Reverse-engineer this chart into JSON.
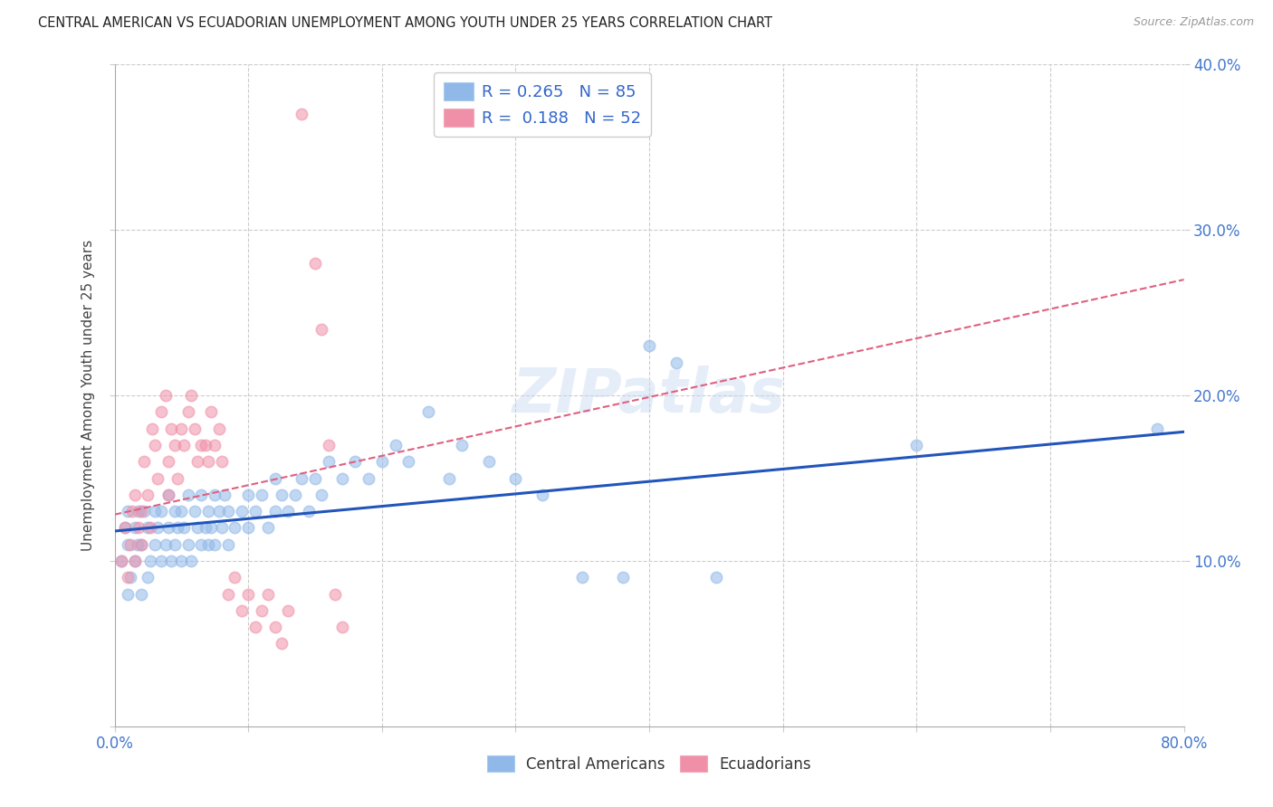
{
  "title": "CENTRAL AMERICAN VS ECUADORIAN UNEMPLOYMENT AMONG YOUTH UNDER 25 YEARS CORRELATION CHART",
  "source": "Source: ZipAtlas.com",
  "ylabel": "Unemployment Among Youth under 25 years",
  "xlim": [
    0,
    0.8
  ],
  "ylim": [
    0,
    0.4
  ],
  "blue_color": "#90b8e8",
  "pink_color": "#f090a8",
  "blue_line_color": "#2255bb",
  "pink_line_color": "#e06080",
  "watermark": "ZIPatlas",
  "blue_line_start_y": 0.118,
  "blue_line_end_y": 0.178,
  "pink_line_start_y": 0.128,
  "pink_line_end_y": 0.27,
  "blue_scatter_x": [
    0.005,
    0.008,
    0.01,
    0.01,
    0.01,
    0.012,
    0.015,
    0.015,
    0.017,
    0.018,
    0.02,
    0.02,
    0.022,
    0.025,
    0.025,
    0.027,
    0.03,
    0.03,
    0.032,
    0.035,
    0.035,
    0.038,
    0.04,
    0.04,
    0.042,
    0.045,
    0.045,
    0.047,
    0.05,
    0.05,
    0.052,
    0.055,
    0.055,
    0.057,
    0.06,
    0.062,
    0.065,
    0.065,
    0.068,
    0.07,
    0.07,
    0.072,
    0.075,
    0.075,
    0.078,
    0.08,
    0.082,
    0.085,
    0.085,
    0.09,
    0.095,
    0.1,
    0.1,
    0.105,
    0.11,
    0.115,
    0.12,
    0.12,
    0.125,
    0.13,
    0.135,
    0.14,
    0.145,
    0.15,
    0.155,
    0.16,
    0.17,
    0.18,
    0.19,
    0.2,
    0.21,
    0.22,
    0.235,
    0.25,
    0.26,
    0.28,
    0.3,
    0.32,
    0.35,
    0.38,
    0.4,
    0.42,
    0.45,
    0.6,
    0.78
  ],
  "blue_scatter_y": [
    0.1,
    0.12,
    0.08,
    0.11,
    0.13,
    0.09,
    0.1,
    0.12,
    0.11,
    0.13,
    0.08,
    0.11,
    0.13,
    0.09,
    0.12,
    0.1,
    0.11,
    0.13,
    0.12,
    0.1,
    0.13,
    0.11,
    0.12,
    0.14,
    0.1,
    0.13,
    0.11,
    0.12,
    0.1,
    0.13,
    0.12,
    0.11,
    0.14,
    0.1,
    0.13,
    0.12,
    0.11,
    0.14,
    0.12,
    0.11,
    0.13,
    0.12,
    0.14,
    0.11,
    0.13,
    0.12,
    0.14,
    0.11,
    0.13,
    0.12,
    0.13,
    0.12,
    0.14,
    0.13,
    0.14,
    0.12,
    0.13,
    0.15,
    0.14,
    0.13,
    0.14,
    0.15,
    0.13,
    0.15,
    0.14,
    0.16,
    0.15,
    0.16,
    0.15,
    0.16,
    0.17,
    0.16,
    0.19,
    0.15,
    0.17,
    0.16,
    0.15,
    0.14,
    0.09,
    0.09,
    0.23,
    0.22,
    0.09,
    0.17,
    0.18
  ],
  "pink_scatter_x": [
    0.005,
    0.008,
    0.01,
    0.012,
    0.013,
    0.015,
    0.015,
    0.018,
    0.02,
    0.02,
    0.022,
    0.025,
    0.027,
    0.028,
    0.03,
    0.032,
    0.035,
    0.038,
    0.04,
    0.04,
    0.042,
    0.045,
    0.047,
    0.05,
    0.052,
    0.055,
    0.057,
    0.06,
    0.062,
    0.065,
    0.068,
    0.07,
    0.072,
    0.075,
    0.078,
    0.08,
    0.085,
    0.09,
    0.095,
    0.1,
    0.105,
    0.11,
    0.115,
    0.12,
    0.125,
    0.13,
    0.14,
    0.15,
    0.155,
    0.16,
    0.165,
    0.17
  ],
  "pink_scatter_y": [
    0.1,
    0.12,
    0.09,
    0.11,
    0.13,
    0.1,
    0.14,
    0.12,
    0.11,
    0.13,
    0.16,
    0.14,
    0.12,
    0.18,
    0.17,
    0.15,
    0.19,
    0.2,
    0.14,
    0.16,
    0.18,
    0.17,
    0.15,
    0.18,
    0.17,
    0.19,
    0.2,
    0.18,
    0.16,
    0.17,
    0.17,
    0.16,
    0.19,
    0.17,
    0.18,
    0.16,
    0.08,
    0.09,
    0.07,
    0.08,
    0.06,
    0.07,
    0.08,
    0.06,
    0.05,
    0.07,
    0.37,
    0.28,
    0.24,
    0.17,
    0.08,
    0.06
  ]
}
